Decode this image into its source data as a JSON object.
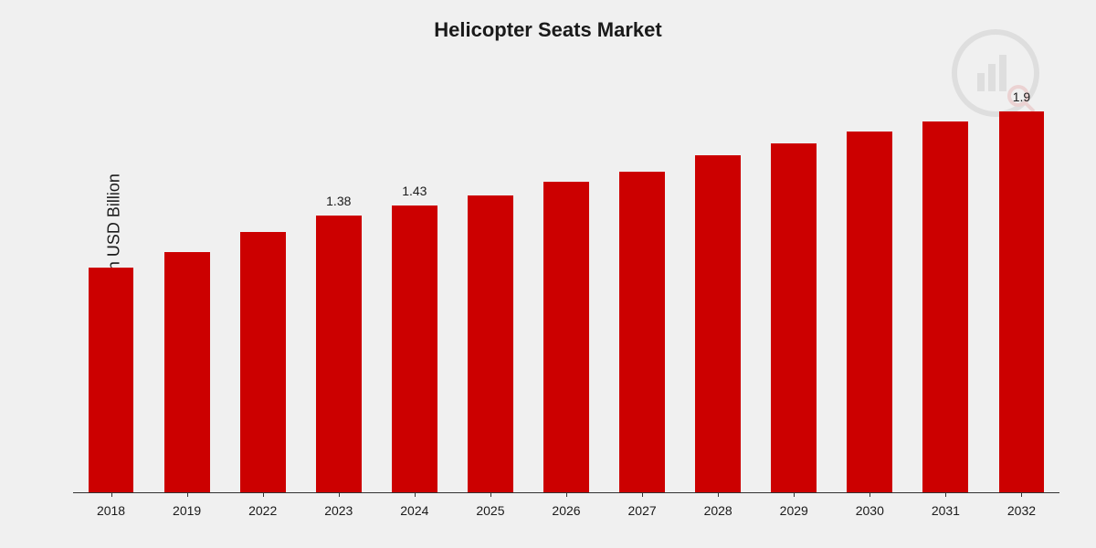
{
  "chart": {
    "type": "bar",
    "title": "Helicopter Seats Market",
    "title_fontsize": 22,
    "ylabel": "Market Value in USD Billion",
    "ylabel_fontsize": 18,
    "background_color": "#f0f0f0",
    "bar_color": "#cc0000",
    "text_color": "#1a1a1a",
    "axis_color": "#333333",
    "ylim": [
      0,
      2.0
    ],
    "bar_width": 0.6,
    "categories": [
      "2018",
      "2019",
      "2022",
      "2023",
      "2024",
      "2025",
      "2026",
      "2027",
      "2028",
      "2029",
      "2030",
      "2031",
      "2032"
    ],
    "values": [
      1.12,
      1.2,
      1.3,
      1.38,
      1.43,
      1.48,
      1.55,
      1.6,
      1.68,
      1.74,
      1.8,
      1.85,
      1.9
    ],
    "value_labels": [
      "",
      "",
      "",
      "1.38",
      "1.43",
      "",
      "",
      "",
      "",
      "",
      "",
      "",
      "1.9"
    ],
    "label_fontsize": 14,
    "watermark_color": "#808080",
    "watermark_opacity": 0.12
  }
}
